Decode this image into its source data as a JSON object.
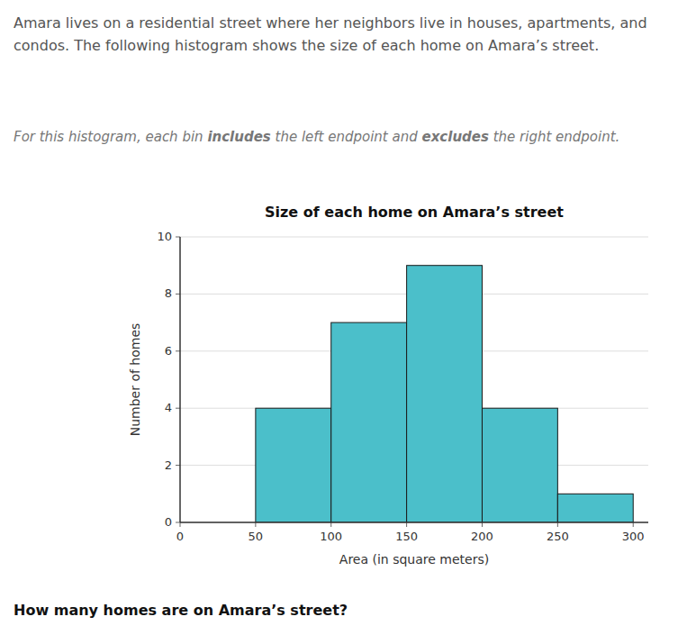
{
  "chart_data": {
    "type": "histogram",
    "title": "Size of each home on Amara’s street",
    "x_label": "Area (in square meters)",
    "y_label": "Number of homes",
    "bins": [
      50,
      100,
      150,
      200,
      250,
      300
    ],
    "values": [
      4,
      7,
      9,
      4,
      1
    ],
    "color": "#4bbfca",
    "xlim": [
      0,
      310
    ],
    "ylim": [
      0,
      10
    ],
    "xticks": [
      0,
      50,
      100,
      150,
      200,
      250,
      300
    ],
    "yticks": [
      0,
      2,
      4,
      6,
      8,
      10
    ],
    "grid": true,
    "annotations": [
      "Amara lives on a residential street where her neighbors live in houses, apartments, and condos. The following histogram shows the size of each home on Amara’s street.",
      [
        "For this histogram, each bin ",
        "includes",
        " the left endpoint and ",
        "excludes",
        " the right endpoint."
      ],
      "How many homes are on Amara’s street?"
    ]
  }
}
